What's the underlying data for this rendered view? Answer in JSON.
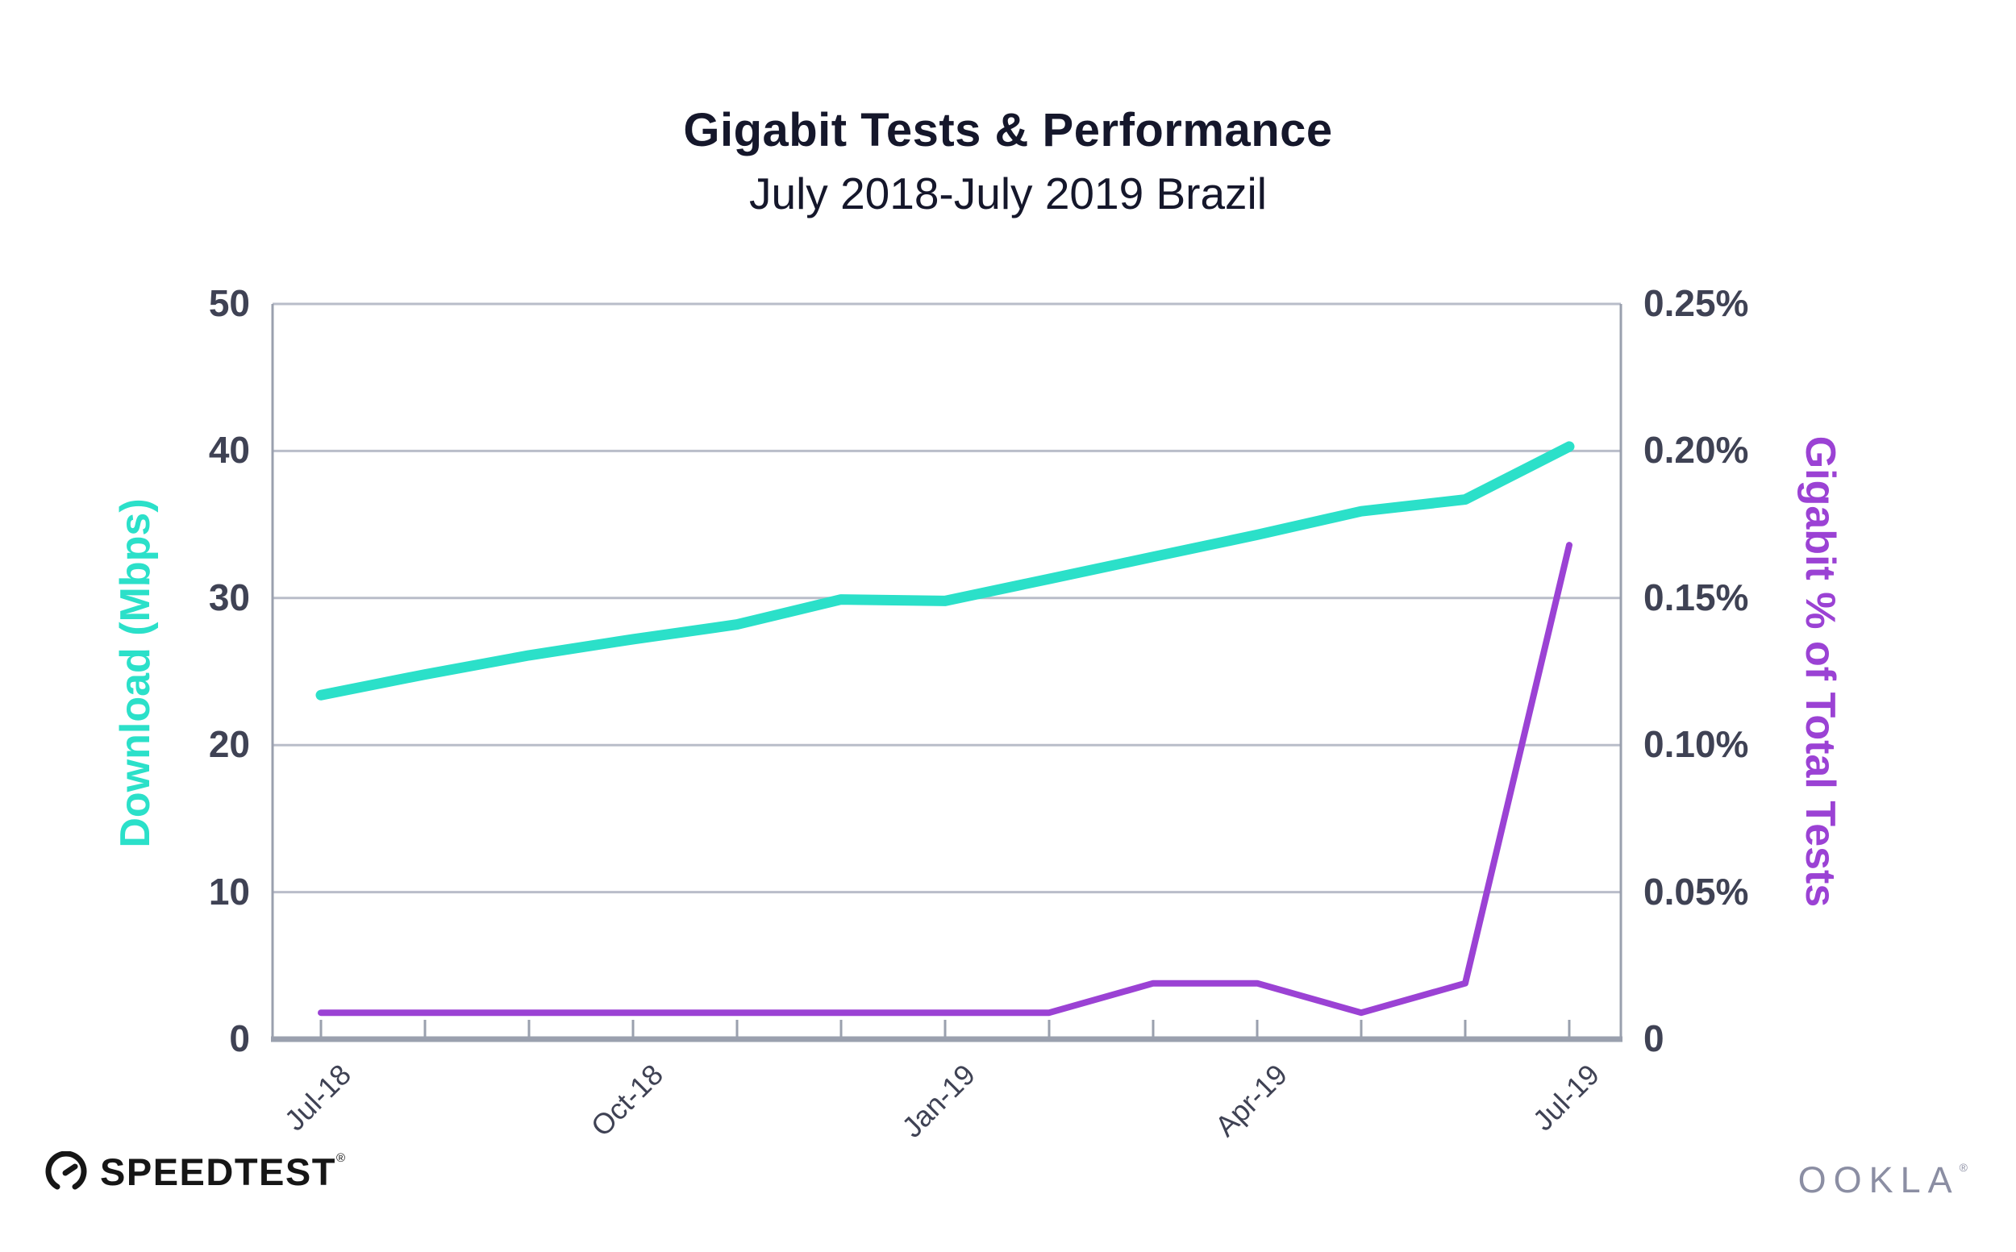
{
  "title": "Gigabit Tests & Performance",
  "subtitle": "July 2018-July 2019 Brazil",
  "left_axis": {
    "title": "Download (Mbps)",
    "tick_labels": [
      "50",
      "40",
      "30",
      "20",
      "10",
      "0"
    ],
    "min": 0,
    "max": 50
  },
  "right_axis": {
    "title": "Gigabit % of Total Tests",
    "tick_labels": [
      "0.25%",
      "0.20%",
      "0.15%",
      "0.10%",
      "0.05%",
      "0"
    ],
    "min": 0,
    "max": 0.25
  },
  "x_axis": {
    "tick_labels_shown": [
      "Jul-18",
      "Oct-18",
      "Jan-19",
      "Apr-19",
      "Jul-19"
    ]
  },
  "chart_data": {
    "type": "line",
    "x": [
      "Jul-18",
      "Aug-18",
      "Sep-18",
      "Oct-18",
      "Nov-18",
      "Dec-18",
      "Jan-19",
      "Feb-19",
      "Mar-19",
      "Apr-19",
      "May-19",
      "Jun-19",
      "Jul-19"
    ],
    "x_tick_labels_shown": [
      "Jul-18",
      "Oct-18",
      "Jan-19",
      "Apr-19",
      "Jul-19"
    ],
    "series": [
      {
        "name": "Download (Mbps)",
        "axis": "left",
        "color": "#2be0c9",
        "values": [
          23.4,
          24.8,
          26.1,
          27.2,
          28.2,
          29.9,
          29.8,
          31.3,
          32.8,
          34.3,
          35.9,
          36.7,
          40.3
        ]
      },
      {
        "name": "Gigabit % of Total Tests",
        "axis": "right",
        "color": "#9b42d4",
        "values": [
          0.009,
          0.009,
          0.009,
          0.009,
          0.009,
          0.009,
          0.009,
          0.009,
          0.019,
          0.019,
          0.009,
          0.019,
          0.168
        ]
      }
    ],
    "title": "Gigabit Tests & Performance",
    "subtitle": "July 2018-July 2019 Brazil",
    "left_ylim": [
      0,
      50
    ],
    "right_ylim": [
      0,
      0.25
    ],
    "grid": "horizontal",
    "legend_position": "none"
  },
  "footer": {
    "speedtest_label": "SPEEDTEST",
    "speedtest_reg": "®",
    "ookla_label": "OOKLA",
    "ookla_reg": "®"
  },
  "colors": {
    "download_line": "#2be0c9",
    "gigabit_line": "#9b42d4",
    "title_text": "#15172b",
    "tick_text": "#3f4254",
    "gridline": "#b9bdc9",
    "axis_border": "#9aa0ae",
    "speedtest_black": "#161616",
    "ookla_gray": "#8b8ea3"
  }
}
